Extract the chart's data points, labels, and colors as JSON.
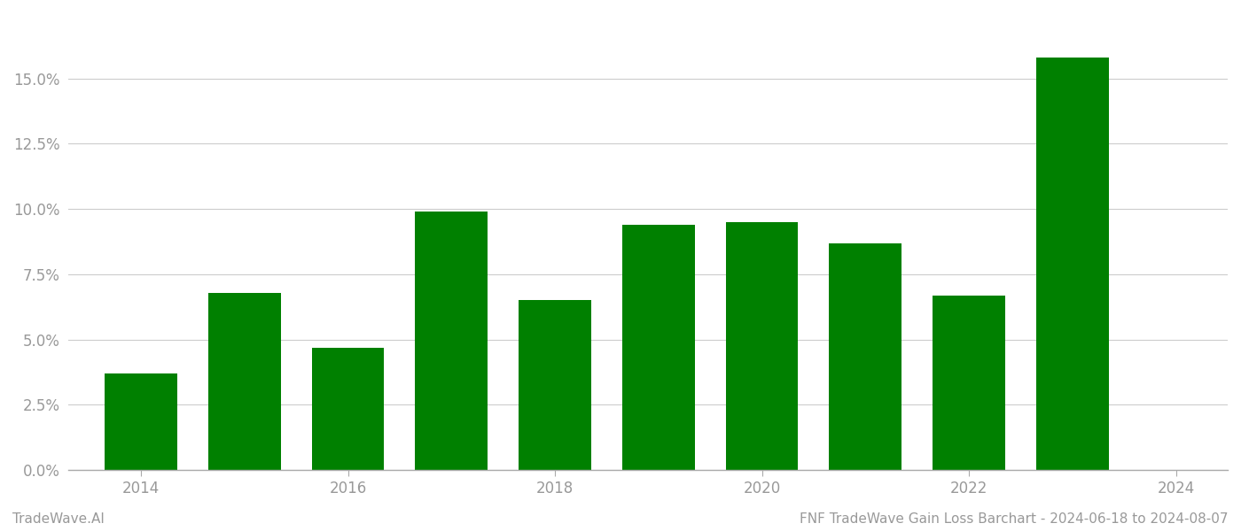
{
  "years": [
    2014,
    2015,
    2016,
    2017,
    2018,
    2019,
    2020,
    2021,
    2022,
    2023
  ],
  "values": [
    0.037,
    0.068,
    0.047,
    0.099,
    0.065,
    0.094,
    0.095,
    0.087,
    0.067,
    0.158
  ],
  "bar_color": "#008000",
  "background_color": "#ffffff",
  "grid_color": "#cccccc",
  "footer_left": "TradeWave.AI",
  "footer_right": "FNF TradeWave Gain Loss Barchart - 2024-06-18 to 2024-08-07",
  "ylim": [
    0,
    0.175
  ],
  "yticks": [
    0.0,
    0.025,
    0.05,
    0.075,
    0.1,
    0.125,
    0.15
  ],
  "xticks": [
    2014,
    2016,
    2018,
    2020,
    2022,
    2024
  ],
  "xlim": [
    2013.3,
    2024.5
  ],
  "bar_width": 0.7,
  "figsize": [
    14.0,
    6.0
  ],
  "dpi": 100,
  "footer_fontsize": 11,
  "tick_fontsize": 12,
  "tick_color": "#999999",
  "spine_color": "#aaaaaa"
}
